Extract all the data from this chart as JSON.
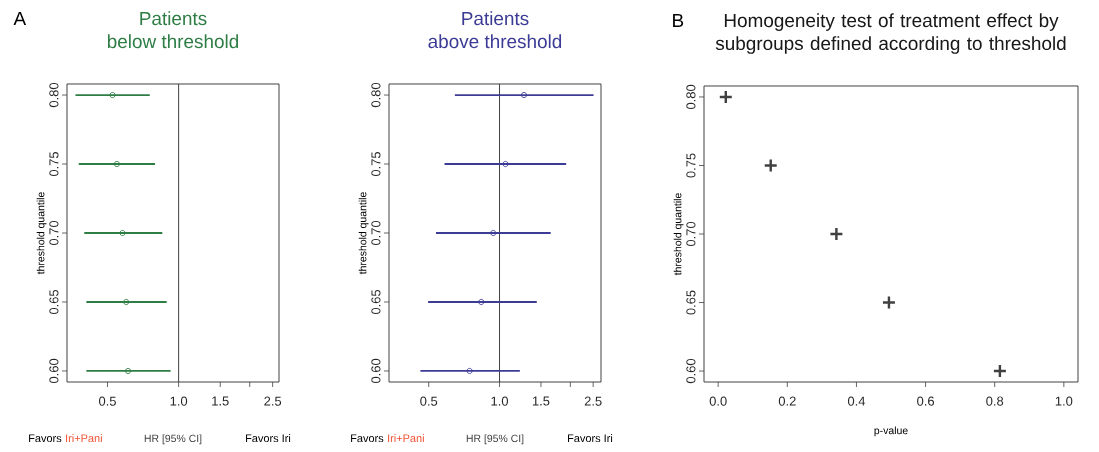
{
  "chart_data": [
    {
      "type": "scatter",
      "title": "Patients",
      "subtitle": "below threshold",
      "xlabel": "HR [95% CI]",
      "ylabel": "threshold quantile",
      "color": "#2e7d45",
      "marker": "circle",
      "log": "x",
      "x": [
        0.525,
        0.548,
        0.579,
        0.6,
        0.611
      ],
      "values": [
        0.8,
        0.75,
        0.7,
        0.65,
        0.6
      ],
      "xerrors": [
        [
          0.366,
          0.755
        ],
        [
          0.378,
          0.795
        ],
        [
          0.399,
          0.853
        ],
        [
          0.407,
          0.89
        ],
        [
          0.407,
          0.925
        ]
      ],
      "xlim": [
        0.337,
        2.66
      ],
      "ylim": [
        0.592,
        0.808
      ],
      "xticks": [
        {
          "value": 0.5,
          "label": "0.5"
        },
        {
          "value": 1,
          "label": "1.0"
        },
        {
          "value": 1.5,
          "label": "1.5"
        },
        {
          "value": 2,
          "label": null
        },
        {
          "value": 2.5,
          "label": "2.5"
        }
      ],
      "yticks": [
        {
          "value": 0.6,
          "label": "0.60"
        },
        {
          "value": 0.65,
          "label": "0.65"
        },
        {
          "value": 0.7,
          "label": "0.70"
        },
        {
          "value": 0.75,
          "label": "0.75"
        },
        {
          "value": 0.8,
          "label": "0.80"
        }
      ],
      "ref_lines": [
        {
          "axis": "x",
          "value": 1,
          "color": "#404040"
        }
      ],
      "annotations": [
        "A",
        "Favors",
        "Iri+Pani",
        "Favors Iri"
      ]
    },
    {
      "type": "scatter",
      "title": "Patients",
      "subtitle": "above threshold",
      "xlabel": "HR [95% CI]",
      "ylabel": "threshold quantile",
      "color": "#3c3c96",
      "marker": "circle",
      "log": "x",
      "x": [
        1.27,
        1.06,
        0.94,
        0.836,
        0.746
      ],
      "values": [
        0.8,
        0.75,
        0.7,
        0.65,
        0.6
      ],
      "xerrors": [
        [
          0.646,
          2.51
        ],
        [
          0.584,
          1.92
        ],
        [
          0.537,
          1.65
        ],
        [
          0.497,
          1.44
        ],
        [
          0.461,
          1.22
        ]
      ],
      "xlim": [
        0.339,
        2.7
      ],
      "ylim": [
        0.592,
        0.808
      ],
      "xticks": [
        {
          "value": 0.5,
          "label": "0.5"
        },
        {
          "value": 1,
          "label": "1.0"
        },
        {
          "value": 1.5,
          "label": "1.5"
        },
        {
          "value": 2,
          "label": null
        },
        {
          "value": 2.5,
          "label": "2.5"
        }
      ],
      "yticks": [
        {
          "value": 0.6,
          "label": "0.60"
        },
        {
          "value": 0.65,
          "label": "0.65"
        },
        {
          "value": 0.7,
          "label": "0.70"
        },
        {
          "value": 0.75,
          "label": "0.75"
        },
        {
          "value": 0.8,
          "label": "0.80"
        }
      ],
      "ref_lines": [
        {
          "axis": "x",
          "value": 1,
          "color": "#404040"
        }
      ],
      "annotations": [
        "Favors",
        "Iri+Pani",
        "Favors Iri"
      ]
    },
    {
      "type": "scatter",
      "title": "Homogeneity test of treatment effect by subgroups defined according to threshold",
      "xlabel": "p-value",
      "ylabel": "threshold quantile",
      "color": "#404040",
      "marker": "cross",
      "x": [
        0.022,
        0.152,
        0.342,
        0.494,
        0.815
      ],
      "values": [
        0.8,
        0.75,
        0.7,
        0.65,
        0.6
      ],
      "xlim": [
        -0.041,
        1.041
      ],
      "ylim": [
        0.592,
        0.808
      ],
      "xticks": [
        {
          "value": 0,
          "label": "0.0"
        },
        {
          "value": 0.2,
          "label": "0.2"
        },
        {
          "value": 0.4,
          "label": "0.4"
        },
        {
          "value": 0.6,
          "label": "0.6"
        },
        {
          "value": 0.8,
          "label": "0.8"
        },
        {
          "value": 1,
          "label": "1.0"
        }
      ],
      "yticks": [
        {
          "value": 0.6,
          "label": "0.60"
        },
        {
          "value": 0.65,
          "label": "0.65"
        },
        {
          "value": 0.7,
          "label": "0.70"
        },
        {
          "value": 0.75,
          "label": "0.75"
        },
        {
          "value": 0.8,
          "label": "0.80"
        }
      ],
      "annotations": [
        "B"
      ]
    }
  ]
}
